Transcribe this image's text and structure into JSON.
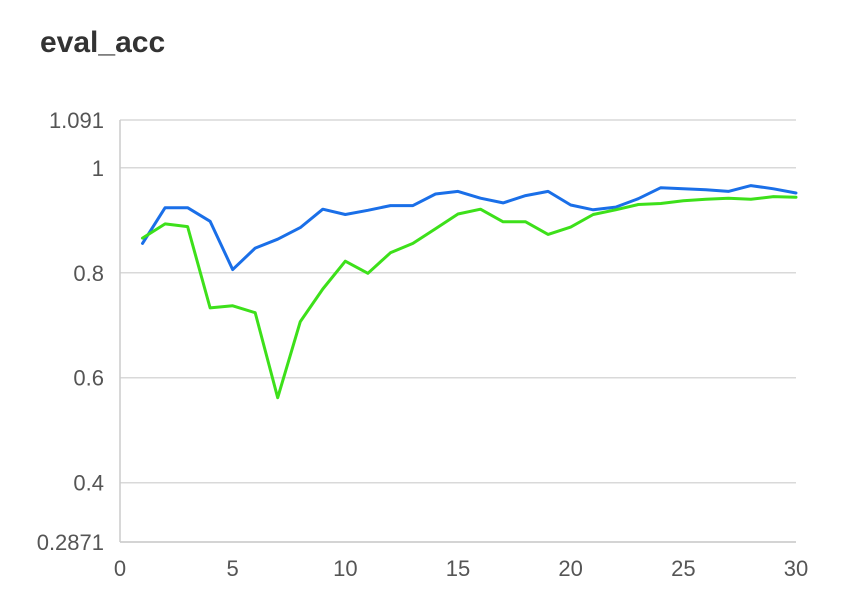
{
  "chart_data": {
    "type": "line",
    "title": "eval_acc",
    "xlabel": "",
    "ylabel": "",
    "xlim": [
      0,
      30
    ],
    "ylim": [
      0.2871,
      1.091
    ],
    "x_ticks": [
      0,
      5,
      10,
      15,
      20,
      25,
      30
    ],
    "y_ticks": [
      1.091,
      1,
      0.8,
      0.6,
      0.4,
      0.2871
    ],
    "y_tick_labels": [
      "1.091",
      "1",
      "0.8",
      "0.6",
      "0.4",
      "0.2871"
    ],
    "x_tick_labels": [
      "0",
      "5",
      "10",
      "15",
      "20",
      "25",
      "30"
    ],
    "grid": true,
    "series": [
      {
        "color": "#1a6fe8",
        "x": [
          1,
          2,
          3,
          4,
          5,
          6,
          7,
          8,
          9,
          10,
          11,
          12,
          13,
          14,
          15,
          16,
          17,
          18,
          19,
          20,
          21,
          22,
          23,
          24,
          25,
          26,
          27,
          28,
          29,
          30
        ],
        "values": [
          0.856,
          0.924,
          0.924,
          0.898,
          0.806,
          0.847,
          0.864,
          0.886,
          0.921,
          0.911,
          0.919,
          0.928,
          0.928,
          0.95,
          0.955,
          0.942,
          0.933,
          0.947,
          0.955,
          0.929,
          0.92,
          0.925,
          0.941,
          0.962,
          0.96,
          0.958,
          0.955,
          0.966,
          0.96,
          0.952
        ]
      },
      {
        "color": "#3de01a",
        "x": [
          1,
          2,
          3,
          4,
          5,
          6,
          7,
          8,
          9,
          10,
          11,
          12,
          13,
          14,
          15,
          16,
          17,
          18,
          19,
          20,
          21,
          22,
          23,
          24,
          25,
          26,
          27,
          28,
          29,
          30
        ],
        "values": [
          0.866,
          0.893,
          0.888,
          0.733,
          0.737,
          0.724,
          0.562,
          0.707,
          0.769,
          0.822,
          0.799,
          0.838,
          0.856,
          0.884,
          0.912,
          0.921,
          0.897,
          0.897,
          0.873,
          0.887,
          0.911,
          0.92,
          0.93,
          0.932,
          0.937,
          0.94,
          0.942,
          0.94,
          0.945,
          0.944
        ]
      }
    ]
  }
}
